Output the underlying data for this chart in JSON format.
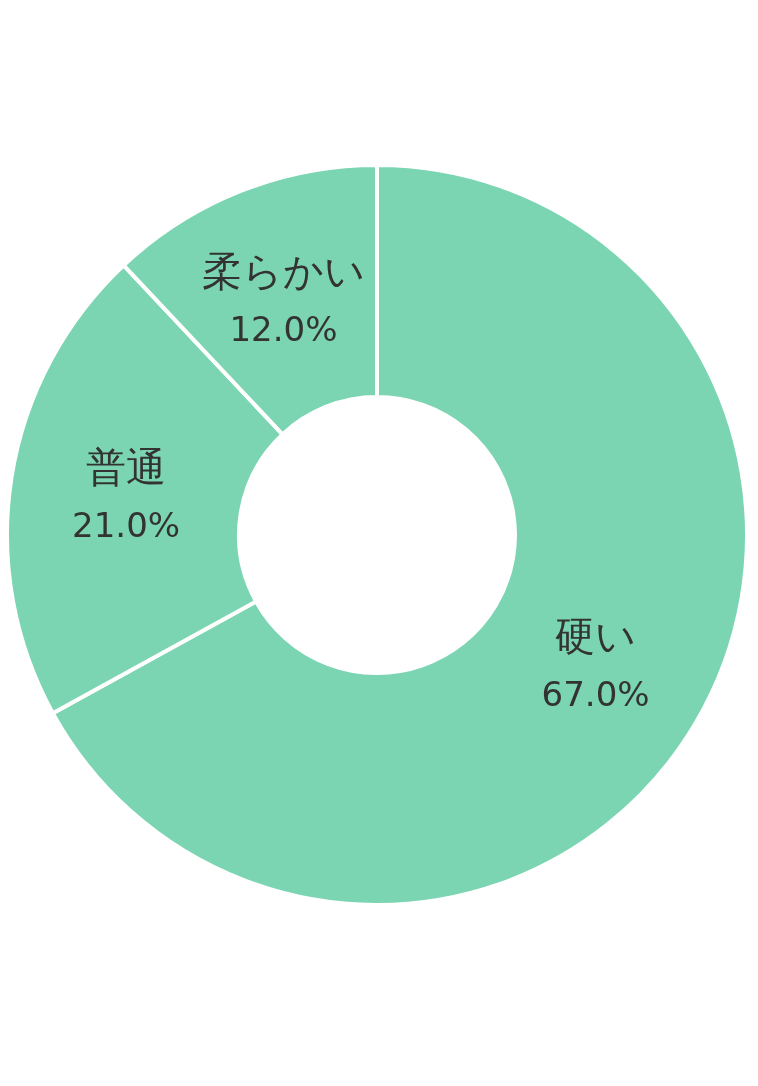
{
  "chart_data": {
    "type": "donut",
    "categories": [
      "硬い",
      "普通",
      "柔らかい"
    ],
    "values": [
      67,
      21,
      12
    ],
    "colors": [
      "#7bd5b3",
      "#7bd5b3",
      "#7bd5b3"
    ],
    "value_labels": [
      "67.0%",
      "21.0%",
      "12.0%"
    ]
  }
}
